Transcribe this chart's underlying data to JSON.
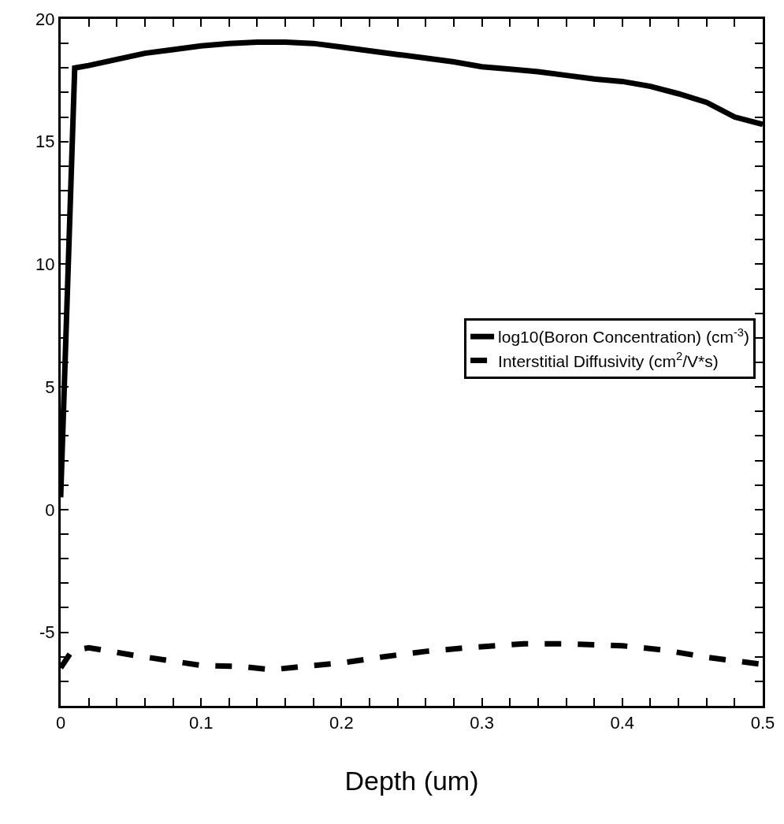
{
  "chart_data": {
    "type": "line",
    "xlabel": "Depth (um)",
    "xlim": [
      0,
      0.5
    ],
    "ylim": [
      -8,
      20
    ],
    "xticks": [
      0,
      {
        "value": 0.02,
        "label": null
      },
      {
        "value": 0.04,
        "label": null
      },
      {
        "value": 0.06,
        "label": null
      },
      {
        "value": 0.08,
        "label": null
      },
      0.1,
      {
        "value": 0.12,
        "label": null
      },
      {
        "value": 0.14,
        "label": null
      },
      {
        "value": 0.16,
        "label": null
      },
      {
        "value": 0.18,
        "label": null
      },
      0.2,
      {
        "value": 0.22,
        "label": null
      },
      {
        "value": 0.24,
        "label": null
      },
      {
        "value": 0.26,
        "label": null
      },
      {
        "value": 0.28,
        "label": null
      },
      0.3,
      {
        "value": 0.32,
        "label": null
      },
      {
        "value": 0.34,
        "label": null
      },
      {
        "value": 0.36,
        "label": null
      },
      {
        "value": 0.38,
        "label": null
      },
      0.4,
      {
        "value": 0.42,
        "label": null
      },
      {
        "value": 0.44,
        "label": null
      },
      {
        "value": 0.46,
        "label": null
      },
      {
        "value": 0.48,
        "label": null
      },
      0.5
    ],
    "yticks": [
      {
        "value": -7,
        "label": null
      },
      {
        "value": -6,
        "label": null
      },
      -5,
      {
        "value": -4,
        "label": null
      },
      {
        "value": -3,
        "label": null
      },
      {
        "value": -2,
        "label": null
      },
      {
        "value": -1,
        "label": null
      },
      0,
      {
        "value": 1,
        "label": null
      },
      {
        "value": 2,
        "label": null
      },
      {
        "value": 3,
        "label": null
      },
      {
        "value": 4,
        "label": null
      },
      5,
      {
        "value": 6,
        "label": null
      },
      {
        "value": 7,
        "label": null
      },
      {
        "value": 8,
        "label": null
      },
      {
        "value": 9,
        "label": null
      },
      10,
      {
        "value": 11,
        "label": null
      },
      {
        "value": 12,
        "label": null
      },
      {
        "value": 13,
        "label": null
      },
      {
        "value": 14,
        "label": null
      },
      15,
      {
        "value": 16,
        "label": null
      },
      {
        "value": 17,
        "label": null
      },
      {
        "value": 18,
        "label": null
      },
      {
        "value": 19,
        "label": null
      },
      20
    ],
    "legend": "right",
    "marker": "none",
    "series": [
      {
        "name": "log10(Boron Concentration) (cm$^{-3}$)",
        "color": "#000000",
        "line_style": "solid",
        "x": [
          0,
          0.01,
          0.02,
          0.04,
          0.06,
          0.08,
          0.1,
          0.12,
          0.14,
          0.16,
          0.18,
          0.2,
          0.22,
          0.24,
          0.26,
          0.28,
          0.3,
          0.32,
          0.34,
          0.36,
          0.38,
          0.4,
          0.42,
          0.44,
          0.46,
          0.48,
          0.5
        ],
        "values": [
          0.5,
          18.0,
          18.1,
          18.35,
          18.6,
          18.75,
          18.9,
          19.0,
          19.05,
          19.05,
          19.0,
          18.85,
          18.7,
          18.55,
          18.4,
          18.25,
          18.05,
          17.95,
          17.85,
          17.7,
          17.55,
          17.45,
          17.25,
          16.95,
          16.6,
          16.0,
          15.7
        ]
      },
      {
        "name": "Interstitial Diffusivity (cm$^{2}$/V*s)",
        "color": "#000000",
        "line_style": "dashed",
        "x": [
          0,
          0.008,
          0.02,
          0.05,
          0.08,
          0.1,
          0.13,
          0.15,
          0.17,
          0.2,
          0.23,
          0.26,
          0.29,
          0.31,
          0.33,
          0.36,
          0.4,
          0.43,
          0.46,
          0.5
        ],
        "values": [
          -6.45,
          -5.76,
          -5.63,
          -5.92,
          -6.18,
          -6.35,
          -6.4,
          -6.53,
          -6.41,
          -6.25,
          -6.0,
          -5.78,
          -5.63,
          -5.55,
          -5.47,
          -5.47,
          -5.55,
          -5.73,
          -6.02,
          -6.31
        ]
      }
    ]
  }
}
